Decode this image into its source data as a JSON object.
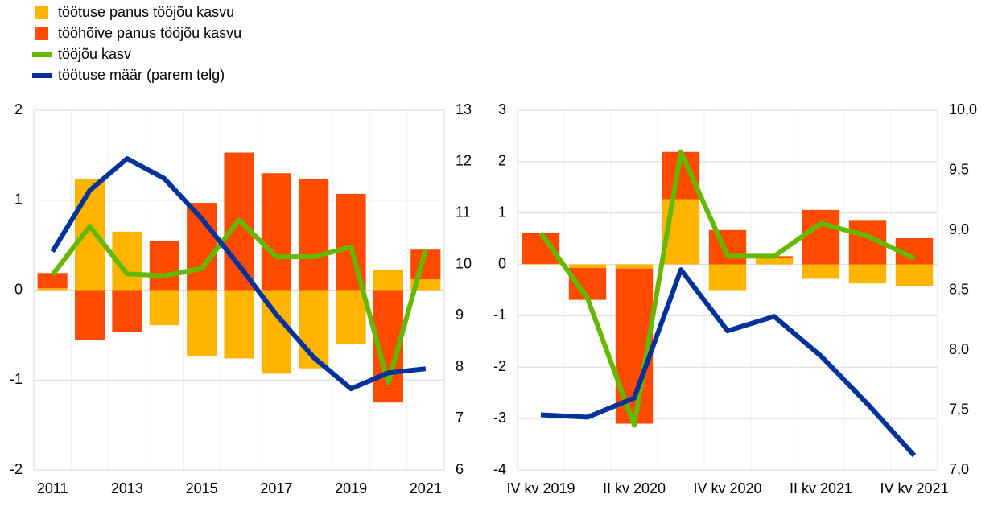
{
  "chart_data": [
    {
      "type": "bar",
      "legend": "top-left",
      "grid": true,
      "categories": [
        "2011",
        null,
        "2013",
        null,
        "2015",
        null,
        "2017",
        null,
        "2019",
        null,
        "2021"
      ],
      "ylim": [
        -2,
        2
      ],
      "yticks": [
        -2,
        -1,
        0,
        1,
        2
      ],
      "y2lim": [
        6,
        13
      ],
      "y2ticks": [
        6,
        7,
        8,
        9,
        10,
        11,
        12,
        13
      ],
      "series": [
        {
          "name": "töötuse panus tööjõu kasvu",
          "type": "bar",
          "color": "#FFB400",
          "values": [
            0.02,
            1.24,
            0.65,
            -0.39,
            -0.73,
            -0.76,
            -0.93,
            -0.87,
            -0.6,
            0.22,
            0.12
          ]
        },
        {
          "name": "tööhõive panus tööjõu kasvu",
          "type": "bar",
          "color": "#FF4B00",
          "values": [
            0.17,
            -0.55,
            -0.47,
            0.55,
            0.97,
            1.53,
            1.3,
            1.24,
            1.07,
            -1.25,
            0.33
          ]
        },
        {
          "name": "tööjõu kasv",
          "type": "line",
          "color": "#65B800",
          "values": [
            0.17,
            0.71,
            0.18,
            0.16,
            0.24,
            0.78,
            0.37,
            0.37,
            0.48,
            -1.03,
            0.45
          ]
        },
        {
          "name": "töötuse määr (parem telg)",
          "type": "line",
          "axis": "y2",
          "color": "#003299",
          "values": [
            10.25,
            11.44,
            12.06,
            11.67,
            10.89,
            9.98,
            9.02,
            8.19,
            7.58,
            7.89,
            7.97
          ]
        }
      ]
    },
    {
      "type": "bar",
      "grid": true,
      "categories": [
        "IV kv 2019",
        null,
        "II kv 2020",
        null,
        "IV kv 2020",
        null,
        "II kv 2021",
        null,
        "IV kv 2021"
      ],
      "ylim": [
        -4,
        3
      ],
      "yticks": [
        -4,
        -3,
        -2,
        -1,
        0,
        1,
        2,
        3
      ],
      "y2lim": [
        7,
        10
      ],
      "y2ticks": [
        {
          "value": 7,
          "label": "7,0"
        },
        {
          "value": 7.5,
          "label": "7,5"
        },
        {
          "value": 8,
          "label": "8,0"
        },
        {
          "value": 8.5,
          "label": "8,5"
        },
        {
          "value": 9,
          "label": "9,0"
        },
        {
          "value": 9.5,
          "label": "9,5"
        },
        {
          "value": 10,
          "label": "10,0"
        }
      ],
      "series": [
        {
          "type": "bar",
          "color": "#FFB400",
          "values": [
            0.01,
            -0.07,
            -0.08,
            1.27,
            -0.5,
            0.12,
            -0.28,
            -0.37,
            -0.42
          ]
        },
        {
          "type": "bar",
          "color": "#FF4B00",
          "values": [
            0.6,
            -0.62,
            -3.02,
            0.92,
            0.67,
            0.04,
            1.06,
            0.85,
            0.51
          ]
        },
        {
          "type": "line",
          "color": "#65B800",
          "values": [
            0.61,
            -0.66,
            -3.13,
            2.19,
            0.16,
            0.16,
            0.8,
            0.55,
            0.12
          ]
        },
        {
          "type": "line",
          "axis": "y2",
          "color": "#003299",
          "values": [
            7.46,
            7.44,
            7.6,
            8.67,
            8.16,
            8.28,
            7.95,
            7.55,
            7.12
          ]
        }
      ]
    }
  ]
}
